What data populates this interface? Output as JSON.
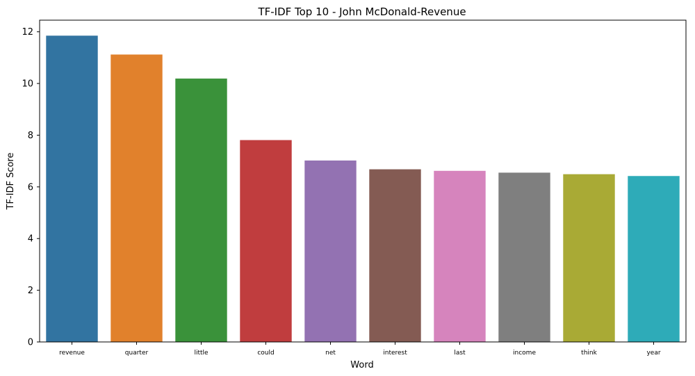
{
  "chart_data": {
    "type": "bar",
    "title": "TF-IDF Top 10 - John McDonald-Revenue",
    "xlabel": "Word",
    "ylabel": "TF-IDF Score",
    "categories": [
      "revenue",
      "quarter",
      "little",
      "could",
      "net",
      "interest",
      "last",
      "income",
      "think",
      "year"
    ],
    "values": [
      11.85,
      11.12,
      10.19,
      7.81,
      7.02,
      6.68,
      6.62,
      6.55,
      6.49,
      6.42
    ],
    "colors": [
      "#3274a1",
      "#e1812c",
      "#3a923a",
      "#c03d3e",
      "#9372b2",
      "#845b53",
      "#d684bd",
      "#7f7f7f",
      "#a9aa35",
      "#2eabb8"
    ],
    "yticks": [
      "0",
      "2",
      "4",
      "6",
      "8",
      "10",
      "12"
    ],
    "ylim": [
      0,
      12.45
    ],
    "grid": false,
    "legend": "none"
  }
}
